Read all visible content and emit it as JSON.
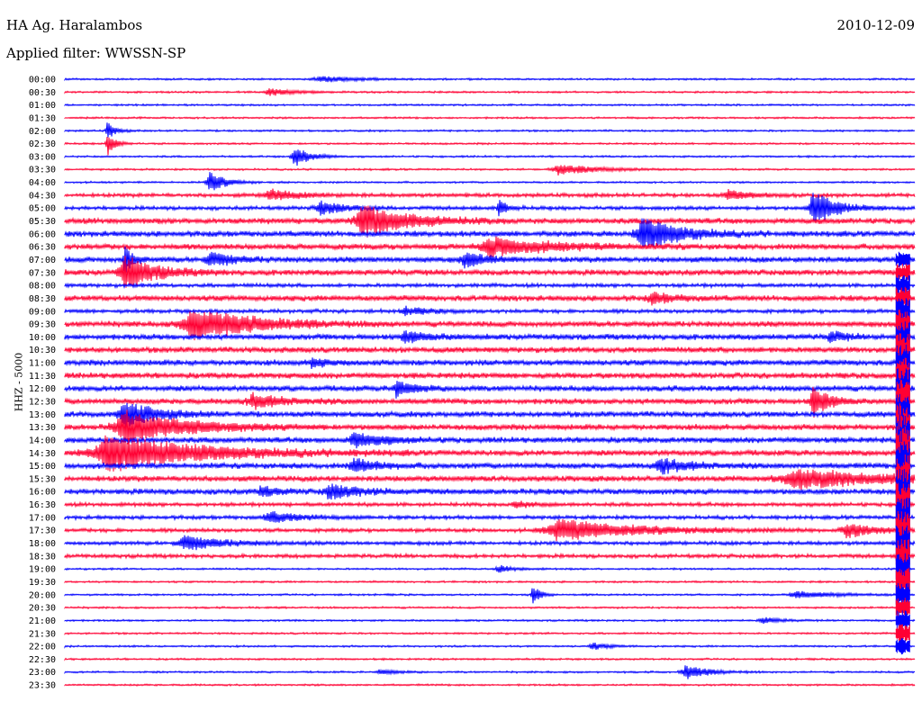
{
  "header": {
    "station": "HA Ag. Haralambos",
    "date": "2010-12-09",
    "filter": "Applied filter: WWSSN-SP"
  },
  "chart_data": {
    "type": "line",
    "ylabel": "HHZ - 5000",
    "series_colors": [
      "#0000ff",
      "#ff0033"
    ],
    "rows": [
      "00:00",
      "00:30",
      "01:00",
      "01:30",
      "02:00",
      "02:30",
      "03:00",
      "03:30",
      "04:00",
      "04:30",
      "05:00",
      "05:30",
      "06:00",
      "06:30",
      "07:00",
      "07:30",
      "08:00",
      "08:30",
      "09:00",
      "09:30",
      "10:00",
      "10:30",
      "11:00",
      "11:30",
      "12:00",
      "12:30",
      "13:00",
      "13:30",
      "14:00",
      "14:30",
      "15:00",
      "15:30",
      "16:00",
      "16:30",
      "17:00",
      "17:30",
      "18:00",
      "18:30",
      "19:00",
      "19:30",
      "20:00",
      "20:30",
      "21:00",
      "21:30",
      "22:00",
      "22:30",
      "23:00",
      "23:30"
    ],
    "noise_level": [
      1,
      1,
      1,
      1,
      1,
      1,
      1,
      1,
      1,
      2,
      2,
      3,
      3,
      3,
      3,
      3,
      2,
      3,
      2,
      3,
      3,
      3,
      3,
      3,
      3,
      3,
      3,
      3,
      3,
      3,
      3,
      3,
      3,
      2,
      2,
      2,
      2,
      2,
      1,
      1,
      1,
      1,
      1,
      1,
      1,
      1,
      1,
      1
    ],
    "events": [
      {
        "row": 0,
        "x": 0.3,
        "amp": 3,
        "dur": 0.05
      },
      {
        "row": 1,
        "x": 0.24,
        "amp": 4,
        "dur": 0.03
      },
      {
        "row": 4,
        "x": 0.05,
        "amp": 10,
        "dur": 0.01
      },
      {
        "row": 5,
        "x": 0.05,
        "amp": 14,
        "dur": 0.01
      },
      {
        "row": 6,
        "x": 0.27,
        "amp": 12,
        "dur": 0.02
      },
      {
        "row": 7,
        "x": 0.58,
        "amp": 6,
        "dur": 0.05
      },
      {
        "row": 8,
        "x": 0.17,
        "amp": 12,
        "dur": 0.02
      },
      {
        "row": 9,
        "x": 0.24,
        "amp": 6,
        "dur": 0.04
      },
      {
        "row": 9,
        "x": 0.78,
        "amp": 5,
        "dur": 0.03
      },
      {
        "row": 10,
        "x": 0.3,
        "amp": 8,
        "dur": 0.03
      },
      {
        "row": 10,
        "x": 0.51,
        "amp": 10,
        "dur": 0.01
      },
      {
        "row": 10,
        "x": 0.88,
        "amp": 20,
        "dur": 0.03
      },
      {
        "row": 11,
        "x": 0.35,
        "amp": 18,
        "dur": 0.06
      },
      {
        "row": 12,
        "x": 0.68,
        "amp": 18,
        "dur": 0.05
      },
      {
        "row": 13,
        "x": 0.5,
        "amp": 10,
        "dur": 0.08
      },
      {
        "row": 14,
        "x": 0.07,
        "amp": 16,
        "dur": 0.01
      },
      {
        "row": 14,
        "x": 0.17,
        "amp": 8,
        "dur": 0.03
      },
      {
        "row": 14,
        "x": 0.47,
        "amp": 8,
        "dur": 0.03
      },
      {
        "row": 15,
        "x": 0.07,
        "amp": 18,
        "dur": 0.04
      },
      {
        "row": 17,
        "x": 0.69,
        "amp": 6,
        "dur": 0.03
      },
      {
        "row": 18,
        "x": 0.4,
        "amp": 4,
        "dur": 0.03
      },
      {
        "row": 19,
        "x": 0.15,
        "amp": 18,
        "dur": 0.08
      },
      {
        "row": 20,
        "x": 0.4,
        "amp": 6,
        "dur": 0.03
      },
      {
        "row": 20,
        "x": 0.9,
        "amp": 6,
        "dur": 0.02
      },
      {
        "row": 22,
        "x": 0.29,
        "amp": 5,
        "dur": 0.02
      },
      {
        "row": 24,
        "x": 0.39,
        "amp": 10,
        "dur": 0.02
      },
      {
        "row": 25,
        "x": 0.22,
        "amp": 8,
        "dur": 0.04
      },
      {
        "row": 25,
        "x": 0.88,
        "amp": 18,
        "dur": 0.02
      },
      {
        "row": 26,
        "x": 0.07,
        "amp": 14,
        "dur": 0.04
      },
      {
        "row": 27,
        "x": 0.07,
        "amp": 18,
        "dur": 0.08
      },
      {
        "row": 28,
        "x": 0.34,
        "amp": 8,
        "dur": 0.04
      },
      {
        "row": 29,
        "x": 0.05,
        "amp": 20,
        "dur": 0.12
      },
      {
        "row": 30,
        "x": 0.34,
        "amp": 8,
        "dur": 0.03
      },
      {
        "row": 30,
        "x": 0.7,
        "amp": 8,
        "dur": 0.04
      },
      {
        "row": 31,
        "x": 0.86,
        "amp": 10,
        "dur": 0.12
      },
      {
        "row": 32,
        "x": 0.23,
        "amp": 6,
        "dur": 0.02
      },
      {
        "row": 32,
        "x": 0.31,
        "amp": 8,
        "dur": 0.04
      },
      {
        "row": 33,
        "x": 0.53,
        "amp": 4,
        "dur": 0.02
      },
      {
        "row": 34,
        "x": 0.24,
        "amp": 6,
        "dur": 0.04
      },
      {
        "row": 35,
        "x": 0.58,
        "amp": 12,
        "dur": 0.1
      },
      {
        "row": 35,
        "x": 0.92,
        "amp": 8,
        "dur": 0.04
      },
      {
        "row": 36,
        "x": 0.14,
        "amp": 8,
        "dur": 0.05
      },
      {
        "row": 38,
        "x": 0.51,
        "amp": 4,
        "dur": 0.02
      },
      {
        "row": 40,
        "x": 0.55,
        "amp": 12,
        "dur": 0.01
      },
      {
        "row": 40,
        "x": 0.86,
        "amp": 4,
        "dur": 0.05
      },
      {
        "row": 42,
        "x": 0.82,
        "amp": 4,
        "dur": 0.02
      },
      {
        "row": 44,
        "x": 0.62,
        "amp": 4,
        "dur": 0.02
      },
      {
        "row": 46,
        "x": 0.73,
        "amp": 8,
        "dur": 0.03
      },
      {
        "row": 46,
        "x": 0.37,
        "amp": 3,
        "dur": 0.02
      }
    ],
    "teleseism": {
      "start_row": 14,
      "end_row": 44,
      "x": 0.995,
      "amp": 30
    }
  }
}
